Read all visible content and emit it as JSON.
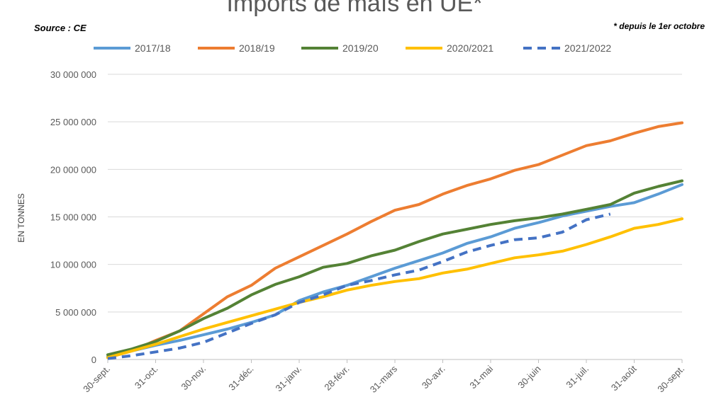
{
  "chart_data": {
    "type": "line",
    "title": "Imports de maïs en UE*",
    "source": "Source : CE",
    "note": "* depuis le 1er octobre",
    "ylabel": "EN TONNES",
    "ylim": [
      0,
      30000000
    ],
    "yticks": [
      "0",
      "5 000 000",
      "10 000 000",
      "15 000 000",
      "20 000 000",
      "25 000 000",
      "30 000 000"
    ],
    "x_categories": [
      "30-sept.",
      "31-oct.",
      "30-nov.",
      "31-déc.",
      "31-janv.",
      "28-févr.",
      "31-mars",
      "30-avr.",
      "31-mai",
      "30-juin",
      "31-juil.",
      "31-août",
      "30-sept."
    ],
    "legend_position": "top",
    "grid": true,
    "series": [
      {
        "name": "2017/18",
        "color": "#5B9BD5",
        "style": "solid",
        "values": [
          [
            0,
            300000
          ],
          [
            0.5,
            900000
          ],
          [
            1,
            1500000
          ],
          [
            1.5,
            2000000
          ],
          [
            2,
            2600000
          ],
          [
            2.5,
            3200000
          ],
          [
            3,
            3900000
          ],
          [
            3.5,
            4700000
          ],
          [
            4,
            6200000
          ],
          [
            4.5,
            7100000
          ],
          [
            5,
            7800000
          ],
          [
            5.5,
            8700000
          ],
          [
            6,
            9600000
          ],
          [
            6.5,
            10400000
          ],
          [
            7,
            11200000
          ],
          [
            7.5,
            12200000
          ],
          [
            8,
            12900000
          ],
          [
            8.5,
            13800000
          ],
          [
            9,
            14400000
          ],
          [
            9.5,
            15100000
          ],
          [
            10,
            15600000
          ],
          [
            10.5,
            16100000
          ],
          [
            11,
            16500000
          ],
          [
            11.5,
            17400000
          ],
          [
            12,
            18400000
          ]
        ]
      },
      {
        "name": "2018/19",
        "color": "#ED7D31",
        "style": "solid",
        "values": [
          [
            0,
            200000
          ],
          [
            0.5,
            900000
          ],
          [
            1,
            2000000
          ],
          [
            1.5,
            3000000
          ],
          [
            2,
            4800000
          ],
          [
            2.5,
            6600000
          ],
          [
            3,
            7800000
          ],
          [
            3.5,
            9600000
          ],
          [
            4,
            10800000
          ],
          [
            4.5,
            12000000
          ],
          [
            5,
            13200000
          ],
          [
            5.5,
            14500000
          ],
          [
            6,
            15700000
          ],
          [
            6.5,
            16300000
          ],
          [
            7,
            17400000
          ],
          [
            7.5,
            18300000
          ],
          [
            8,
            19000000
          ],
          [
            8.5,
            19900000
          ],
          [
            9,
            20500000
          ],
          [
            9.5,
            21500000
          ],
          [
            10,
            22500000
          ],
          [
            10.5,
            23000000
          ],
          [
            11,
            23800000
          ],
          [
            11.5,
            24500000
          ],
          [
            12,
            24900000
          ]
        ]
      },
      {
        "name": "2019/20",
        "color": "#548235",
        "style": "solid",
        "values": [
          [
            0,
            500000
          ],
          [
            0.5,
            1100000
          ],
          [
            1,
            1900000
          ],
          [
            1.5,
            3000000
          ],
          [
            2,
            4300000
          ],
          [
            2.5,
            5400000
          ],
          [
            3,
            6800000
          ],
          [
            3.5,
            7900000
          ],
          [
            4,
            8700000
          ],
          [
            4.5,
            9700000
          ],
          [
            5,
            10100000
          ],
          [
            5.5,
            10900000
          ],
          [
            6,
            11500000
          ],
          [
            6.5,
            12400000
          ],
          [
            7,
            13200000
          ],
          [
            7.5,
            13700000
          ],
          [
            8,
            14200000
          ],
          [
            8.5,
            14600000
          ],
          [
            9,
            14900000
          ],
          [
            9.5,
            15300000
          ],
          [
            10,
            15800000
          ],
          [
            10.5,
            16300000
          ],
          [
            11,
            17500000
          ],
          [
            11.5,
            18200000
          ],
          [
            12,
            18800000
          ]
        ]
      },
      {
        "name": "2020/2021",
        "color": "#FFC000",
        "style": "solid",
        "values": [
          [
            0,
            200000
          ],
          [
            0.5,
            900000
          ],
          [
            1,
            1600000
          ],
          [
            1.5,
            2400000
          ],
          [
            2,
            3200000
          ],
          [
            2.5,
            3900000
          ],
          [
            3,
            4600000
          ],
          [
            3.5,
            5300000
          ],
          [
            4,
            6000000
          ],
          [
            4.5,
            6600000
          ],
          [
            5,
            7300000
          ],
          [
            5.5,
            7800000
          ],
          [
            6,
            8200000
          ],
          [
            6.5,
            8500000
          ],
          [
            7,
            9100000
          ],
          [
            7.5,
            9500000
          ],
          [
            8,
            10100000
          ],
          [
            8.5,
            10700000
          ],
          [
            9,
            11000000
          ],
          [
            9.5,
            11400000
          ],
          [
            10,
            12100000
          ],
          [
            10.5,
            12900000
          ],
          [
            11,
            13800000
          ],
          [
            11.5,
            14200000
          ],
          [
            12,
            14800000
          ]
        ]
      },
      {
        "name": "2021/2022",
        "color": "#4472C4",
        "style": "dashed",
        "values": [
          [
            0,
            100000
          ],
          [
            0.5,
            400000
          ],
          [
            1,
            800000
          ],
          [
            1.5,
            1200000
          ],
          [
            2,
            1800000
          ],
          [
            2.5,
            2800000
          ],
          [
            3,
            3800000
          ],
          [
            3.5,
            4700000
          ],
          [
            4,
            6000000
          ],
          [
            4.5,
            6800000
          ],
          [
            5,
            7800000
          ],
          [
            5.5,
            8300000
          ],
          [
            6,
            8900000
          ],
          [
            6.5,
            9400000
          ],
          [
            7,
            10300000
          ],
          [
            7.5,
            11300000
          ],
          [
            8,
            12000000
          ],
          [
            8.5,
            12600000
          ],
          [
            9,
            12800000
          ],
          [
            9.5,
            13400000
          ],
          [
            10,
            14700000
          ],
          [
            10.5,
            15300000
          ]
        ]
      }
    ]
  }
}
